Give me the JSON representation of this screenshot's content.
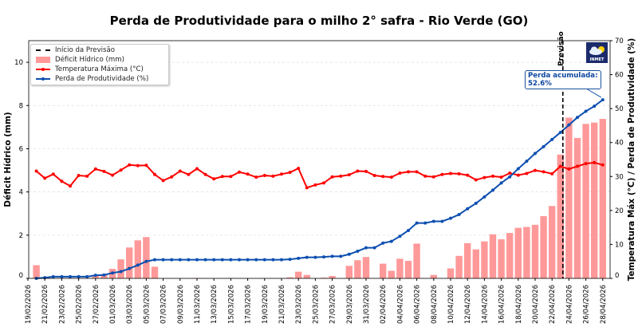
{
  "title": "Perda de Produtividade para o milho 2° safra - Rio Verde (GO)",
  "legend": {
    "forecast": "Início da Previsão",
    "deficit": "Déficit Hídrico (mm)",
    "temp": "Temperatura Máxima (°C)",
    "loss": "Perda de Produtividade (%)"
  },
  "annotation": {
    "line1": "Perda acumulada:",
    "line2": "52.6%"
  },
  "forecast_label": "Previsão",
  "logo_text": "INMET",
  "colors": {
    "deficit": "#ff9999",
    "temp": "#ff0000",
    "loss": "#0d4fb0",
    "forecast": "#000000"
  },
  "chart_data": {
    "type": "bar+line",
    "title": "Perda de Produtividade para o milho 2° safra - Rio Verde (GO)",
    "ylabel_left": "Déficit Hídrico (mm)",
    "ylabel_right": "Temperatura Máx (°C) / Perda de Produtividade (%)",
    "ylim_left": [
      0,
      11
    ],
    "ylim_right": [
      0,
      70
    ],
    "yticks_left": [
      "0",
      "2",
      "4",
      "6",
      "8",
      "10"
    ],
    "yticks_right": [
      "0",
      "10",
      "20",
      "30",
      "40",
      "50",
      "60",
      "70"
    ],
    "grid": "horizontal dashed",
    "legend_position": "top-left",
    "forecast_start": "23/04/2026",
    "xticks": [
      "19/02/2026",
      "21/02/2026",
      "23/02/2026",
      "25/02/2026",
      "27/02/2026",
      "01/03/2026",
      "03/03/2026",
      "05/03/2026",
      "07/03/2026",
      "09/03/2026",
      "11/03/2026",
      "13/03/2026",
      "15/03/2026",
      "17/03/2026",
      "19/03/2026",
      "21/03/2026",
      "23/03/2026",
      "25/03/2026",
      "27/03/2026",
      "29/03/2026",
      "31/03/2026",
      "02/04/2026",
      "04/04/2026",
      "06/04/2026",
      "08/04/2026",
      "10/04/2026",
      "12/04/2026",
      "14/04/2026",
      "16/04/2026",
      "18/04/2026",
      "20/04/2026",
      "22/04/2026",
      "24/04/2026",
      "26/04/2026",
      "28/04/2026"
    ],
    "x": [
      "20/02/2026",
      "21/02/2026",
      "22/02/2026",
      "23/02/2026",
      "24/02/2026",
      "25/02/2026",
      "26/02/2026",
      "27/02/2026",
      "28/02/2026",
      "01/03/2026",
      "02/03/2026",
      "03/03/2026",
      "04/03/2026",
      "05/03/2026",
      "06/03/2026",
      "07/03/2026",
      "08/03/2026",
      "09/03/2026",
      "10/03/2026",
      "11/03/2026",
      "12/03/2026",
      "13/03/2026",
      "14/03/2026",
      "15/03/2026",
      "16/03/2026",
      "17/03/2026",
      "18/03/2026",
      "19/03/2026",
      "20/03/2026",
      "21/03/2026",
      "22/03/2026",
      "23/03/2026",
      "24/03/2026",
      "25/03/2026",
      "26/03/2026",
      "27/03/2026",
      "28/03/2026",
      "29/03/2026",
      "30/03/2026",
      "31/03/2026",
      "01/04/2026",
      "02/04/2026",
      "03/04/2026",
      "04/04/2026",
      "05/04/2026",
      "06/04/2026",
      "07/04/2026",
      "08/04/2026",
      "09/04/2026",
      "10/04/2026",
      "11/04/2026",
      "12/04/2026",
      "13/04/2026",
      "14/04/2026",
      "15/04/2026",
      "16/04/2026",
      "17/04/2026",
      "18/04/2026",
      "19/04/2026",
      "20/04/2026",
      "21/04/2026",
      "22/04/2026",
      "23/04/2026",
      "24/04/2026",
      "25/04/2026",
      "26/04/2026",
      "27/04/2026",
      "28/04/2026"
    ],
    "series": [
      {
        "name": "Déficit Hídrico (mm)",
        "type": "bar",
        "axis": "left",
        "values": [
          0.61,
          0,
          0,
          0,
          0,
          0,
          0,
          0.15,
          0.19,
          0.44,
          0.88,
          1.43,
          1.76,
          1.91,
          0.54,
          0,
          0,
          0,
          0,
          0.02,
          0,
          0,
          0,
          0.02,
          0,
          0,
          0,
          0,
          0,
          0,
          0.05,
          0.31,
          0.16,
          0,
          0.03,
          0.11,
          0,
          0.58,
          0.84,
          0.99,
          0,
          0.68,
          0.35,
          0.91,
          0.81,
          1.61,
          0,
          0.16,
          0,
          0.46,
          1.04,
          1.63,
          1.34,
          1.71,
          2.04,
          1.81,
          2.1,
          2.34,
          2.38,
          2.48,
          2.88,
          3.35,
          5.73,
          7.44,
          6.5,
          7.15,
          7.21,
          7.38
        ]
      },
      {
        "name": "Temperatura Máxima (°C)",
        "type": "line",
        "axis": "right",
        "values": [
          31.6,
          29.5,
          30.7,
          28.6,
          27.2,
          30.3,
          30.1,
          32.2,
          31.5,
          30.4,
          31.9,
          33.4,
          33.2,
          33.3,
          30.6,
          28.8,
          29.9,
          31.6,
          30.6,
          32.3,
          30.6,
          29.3,
          30.0,
          30.0,
          31.3,
          30.7,
          29.8,
          30.3,
          30.1,
          30.7,
          31.2,
          32.4,
          26.7,
          27.5,
          28.1,
          29.9,
          30.1,
          30.5,
          31.6,
          31.5,
          30.3,
          30.0,
          29.8,
          31.0,
          31.4,
          31.4,
          30.1,
          29.9,
          30.6,
          30.9,
          30.8,
          30.4,
          29.0,
          29.7,
          30.1,
          29.8,
          31.0,
          30.4,
          30.9,
          31.8,
          31.4,
          30.8,
          33.0,
          32.2,
          33.0,
          33.8,
          34.1,
          33.4
        ]
      },
      {
        "name": "Perda de Produtividade (%)",
        "type": "line",
        "axis": "right",
        "values": [
          0,
          0.2,
          0.5,
          0.5,
          0.5,
          0.5,
          0.5,
          0.9,
          1.0,
          1.6,
          2.0,
          2.9,
          3.9,
          5.0,
          5.5,
          5.5,
          5.5,
          5.5,
          5.5,
          5.5,
          5.5,
          5.5,
          5.5,
          5.5,
          5.5,
          5.5,
          5.5,
          5.5,
          5.5,
          5.5,
          5.6,
          5.9,
          6.2,
          6.2,
          6.3,
          6.5,
          6.5,
          7.1,
          8.0,
          9.0,
          9.0,
          10.4,
          10.9,
          12.4,
          14.1,
          16.3,
          16.3,
          16.8,
          16.8,
          17.7,
          18.8,
          20.5,
          22.1,
          24.0,
          26.0,
          28.1,
          29.9,
          32.3,
          34.5,
          36.8,
          38.8,
          40.9,
          43.0,
          45.2,
          47.4,
          49.2,
          50.7,
          52.6
        ]
      }
    ]
  }
}
